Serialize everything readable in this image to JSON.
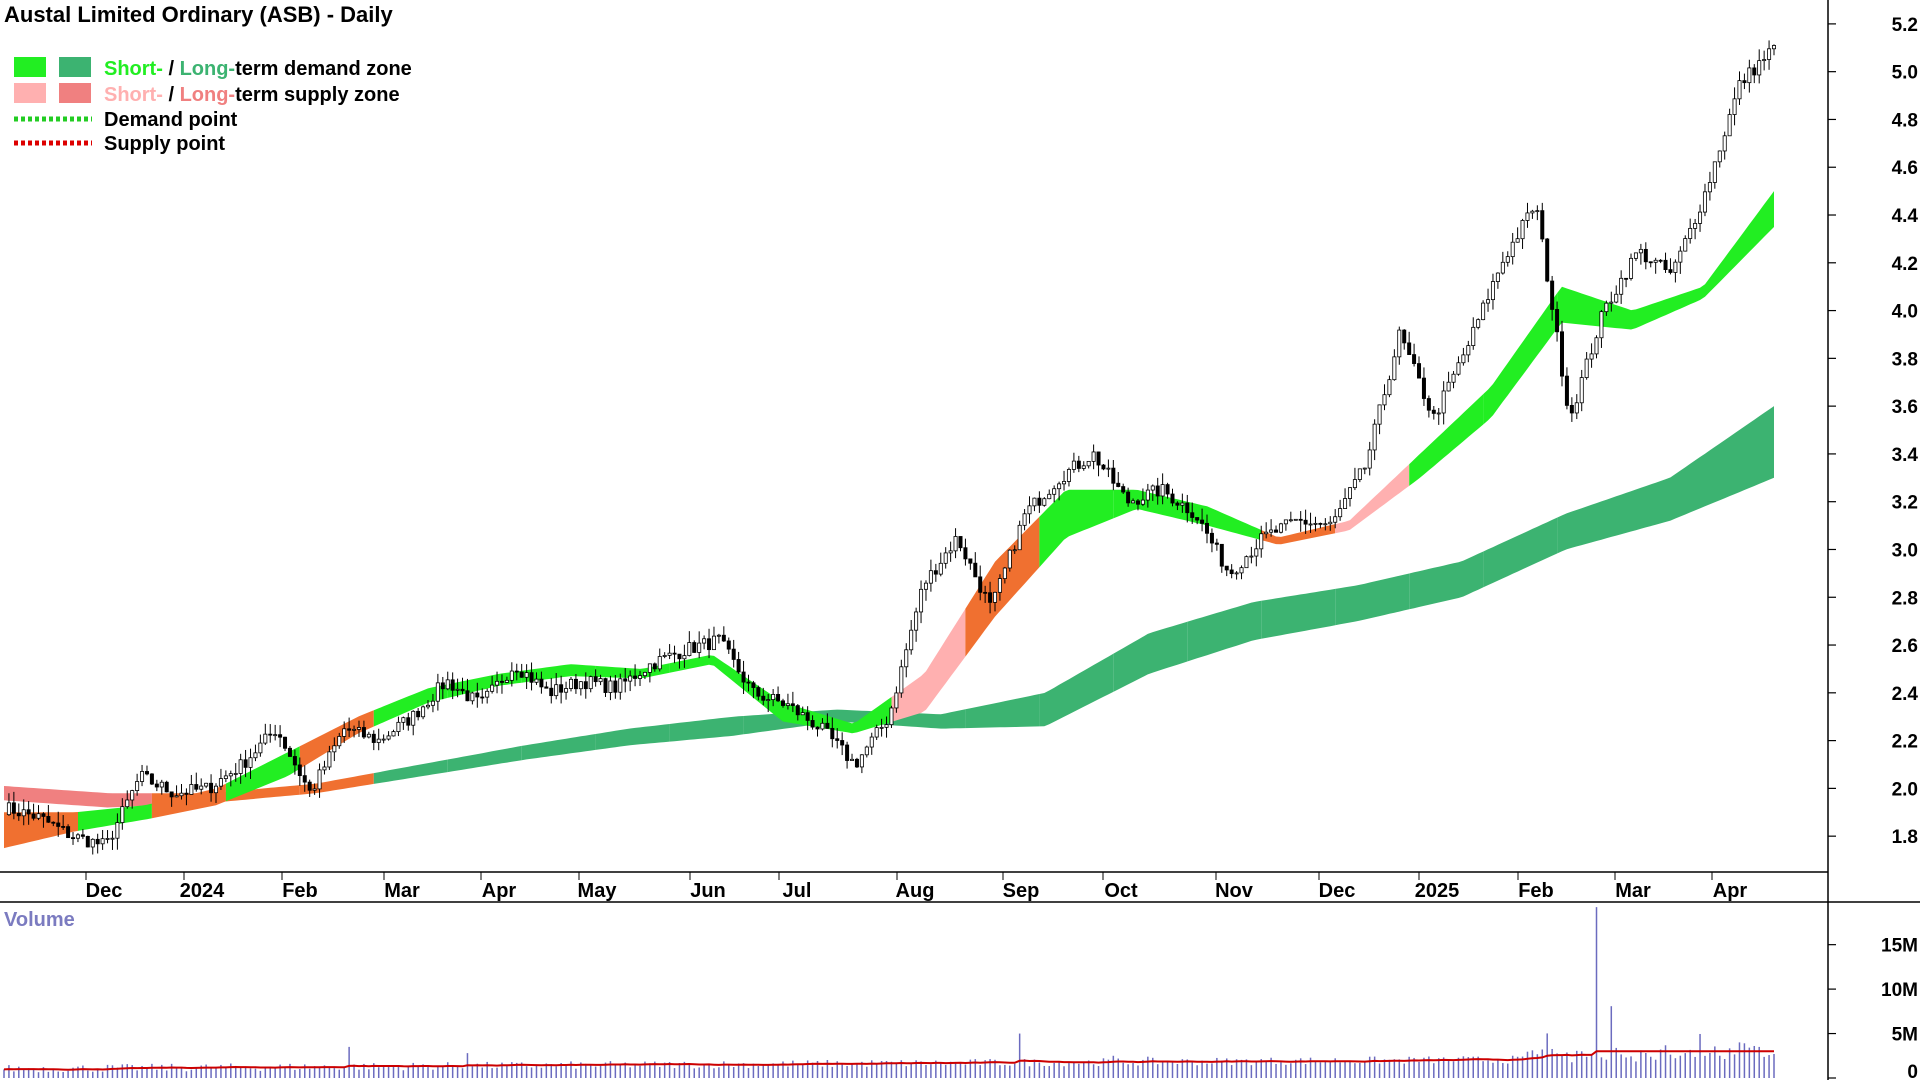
{
  "title": "Austal Limited Ordinary (ASB) - Daily",
  "legend": {
    "demand_zone": {
      "short": "Short-",
      "sep": " / ",
      "long": "Long-",
      "rest": "term demand zone"
    },
    "supply_zone": {
      "short": "Short-",
      "sep": " / ",
      "long": "Long-",
      "rest": "term supply zone"
    },
    "demand_point": "Demand point",
    "supply_point": "Supply point"
  },
  "colors": {
    "short_demand": "#22ee22",
    "long_demand": "#3cb371",
    "short_supply": "#ffb0b0",
    "long_supply": "#f08080",
    "mixed_zone": "#f07030",
    "demand_point": "#22cc22",
    "supply_point": "#dd0000",
    "volume_bar": "#6b6bbf",
    "volume_avg": "#cc0000",
    "volume_label": "#7b7bc0"
  },
  "chart_data": {
    "type": "candlestick",
    "x_labels": [
      "Dec",
      "2024",
      "Feb",
      "Mar",
      "Apr",
      "May",
      "Jun",
      "Jul",
      "Aug",
      "Sep",
      "Oct",
      "Nov",
      "Dec",
      "2025",
      "Feb",
      "Mar",
      "Apr"
    ],
    "y_ticks": [
      "1.8",
      "2.0",
      "2.2",
      "2.4",
      "2.6",
      "2.8",
      "3.0",
      "3.2",
      "3.4",
      "3.6",
      "3.8",
      "4.0",
      "4.2",
      "4.4",
      "4.6",
      "4.8",
      "5.0",
      "5.2"
    ],
    "y_range": [
      1.65,
      5.3
    ],
    "price_path": [
      1.92,
      1.88,
      1.8,
      1.76,
      2.05,
      1.98,
      2.0,
      2.1,
      2.25,
      1.98,
      2.25,
      2.2,
      2.3,
      2.45,
      2.35,
      2.52,
      2.4,
      2.45,
      2.42,
      2.52,
      2.58,
      2.62,
      2.4,
      2.35,
      2.25,
      2.1,
      2.3,
      2.85,
      3.05,
      2.75,
      3.15,
      3.3,
      3.4,
      3.2,
      3.25,
      3.15,
      2.9,
      3.05,
      3.12,
      3.1,
      3.35,
      3.9,
      3.55,
      3.85,
      4.2,
      4.45,
      3.55,
      4.0,
      4.25,
      4.15,
      4.5,
      4.95,
      5.1
    ],
    "short_zone_path": {
      "upper": [
        1.9,
        1.9,
        1.93,
        2.0,
        2.15,
        2.3,
        2.42,
        2.48,
        2.52,
        2.5,
        2.56,
        2.36,
        2.27,
        2.48,
        2.95,
        3.25,
        3.25,
        3.18,
        3.05,
        3.12,
        3.4,
        3.68,
        4.1,
        4.0,
        4.1,
        4.5
      ],
      "lower": [
        1.75,
        1.82,
        1.87,
        1.93,
        2.05,
        2.23,
        2.36,
        2.43,
        2.47,
        2.46,
        2.52,
        2.28,
        2.23,
        2.32,
        2.72,
        3.05,
        3.17,
        3.1,
        3.02,
        3.08,
        3.3,
        3.55,
        3.95,
        3.92,
        4.05,
        4.35
      ]
    },
    "long_zone_path": {
      "upper": [
        2.01,
        1.98,
        1.98,
        2.02,
        2.1,
        2.18,
        2.25,
        2.3,
        2.33,
        2.31,
        2.4,
        2.65,
        2.78,
        2.85,
        2.95,
        3.15,
        3.3,
        3.6
      ],
      "lower": [
        1.95,
        1.92,
        1.94,
        1.98,
        2.05,
        2.12,
        2.18,
        2.22,
        2.28,
        2.25,
        2.26,
        2.48,
        2.62,
        2.7,
        2.8,
        3.0,
        3.12,
        3.3
      ]
    },
    "volume": {
      "label": "Volume",
      "y_ticks": [
        "0",
        "5M",
        "10M",
        "15M"
      ],
      "y_range": [
        0,
        18
      ],
      "spikes": [
        {
          "x_frac": 0.195,
          "value": 3.5
        },
        {
          "x_frac": 0.262,
          "value": 2.8
        },
        {
          "x_frac": 0.574,
          "value": 5.0
        },
        {
          "x_frac": 0.626,
          "value": 2.5
        },
        {
          "x_frac": 0.646,
          "value": 2.4
        },
        {
          "x_frac": 0.69,
          "value": 2.2
        },
        {
          "x_frac": 0.871,
          "value": 3.8
        },
        {
          "x_frac": 0.9,
          "value": 18.0
        },
        {
          "x_frac": 0.909,
          "value": 7.5
        },
        {
          "x_frac": 0.958,
          "value": 4.5
        }
      ]
    }
  }
}
